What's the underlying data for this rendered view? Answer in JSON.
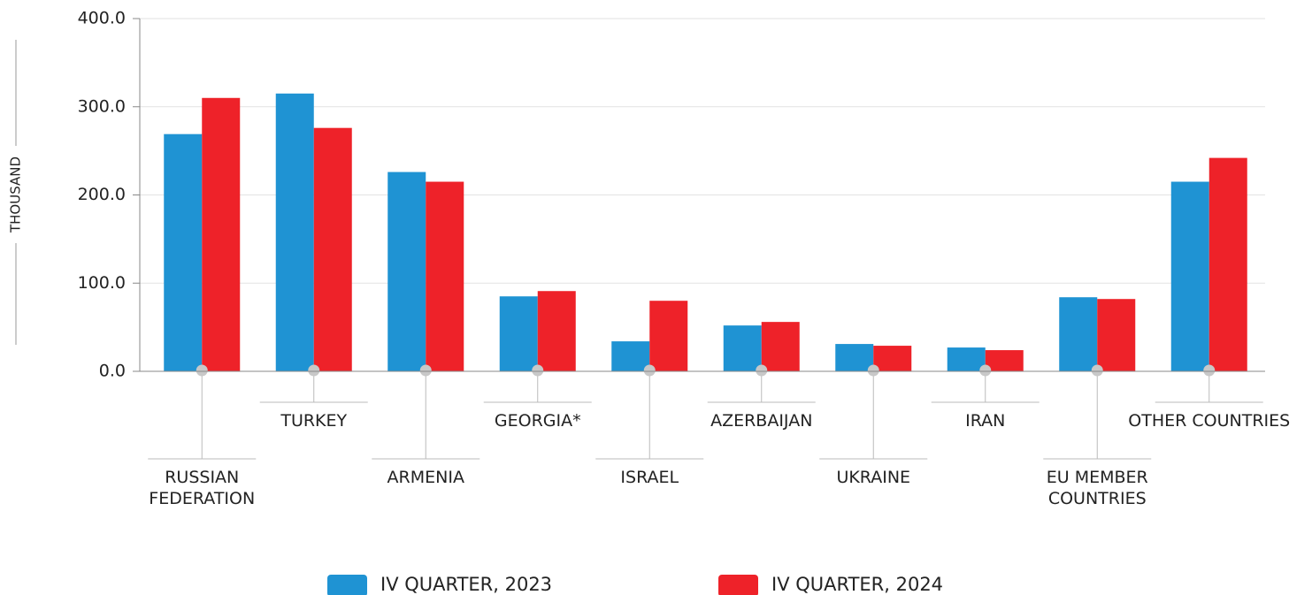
{
  "chart_data": {
    "type": "bar",
    "y_axis_label": "THOUSAND",
    "categories": [
      "RUSSIAN\nFEDERATION",
      "TURKEY",
      "ARMENIA",
      "GEORGIA*",
      "ISRAEL",
      "AZERBAIJAN",
      "UKRAINE",
      "IRAN",
      "EU MEMBER\nCOUNTRIES",
      "OTHER COUNTRIES"
    ],
    "series": [
      {
        "name": "IV QUARTER, 2023",
        "color": "#1f93d3",
        "values": [
          269,
          315,
          226,
          85,
          34,
          52,
          31,
          27,
          84,
          215
        ]
      },
      {
        "name": "IV QUARTER, 2024",
        "color": "#ee2229",
        "values": [
          310,
          276,
          215,
          91,
          80,
          56,
          29,
          24,
          82,
          242
        ]
      }
    ],
    "ylim": [
      0,
      400
    ],
    "yticks": [
      {
        "value": 0,
        "label": "0.0"
      },
      {
        "value": 100,
        "label": "100.0"
      },
      {
        "value": 200,
        "label": "200.0"
      },
      {
        "value": 300,
        "label": "300.0"
      },
      {
        "value": 400,
        "label": "400.0"
      }
    ],
    "grid": true,
    "legend": "bottom"
  }
}
